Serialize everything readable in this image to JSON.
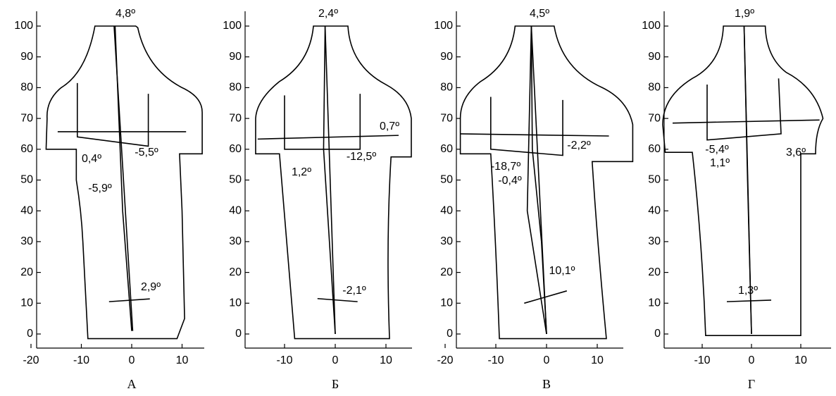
{
  "panels": [
    {
      "label": "А",
      "yticks": [
        0,
        10,
        20,
        30,
        40,
        50,
        60,
        70,
        80,
        90,
        100
      ],
      "xticks": [
        -20,
        -10,
        0,
        10
      ],
      "annotations": [
        "4,8º",
        "0,4º",
        "-5,5º",
        "-5,9º",
        "2,9º"
      ]
    },
    {
      "label": "Б",
      "yticks": [
        0,
        10,
        20,
        30,
        40,
        50,
        60,
        70,
        80,
        90,
        100
      ],
      "xticks": [
        -10,
        0,
        10
      ],
      "annotations": [
        "2,4º",
        "0,7º",
        "1,2º",
        "-12,5º",
        "-2,1º"
      ]
    },
    {
      "label": "В",
      "yticks": [
        0,
        10,
        20,
        30,
        40,
        50,
        60,
        70,
        80,
        90,
        100
      ],
      "xticks": [
        -20,
        -10,
        0,
        10
      ],
      "annotations": [
        "4,5º",
        "-2,2º",
        "-18,7º",
        "-0,4º",
        "10,1º"
      ]
    },
    {
      "label": "Г",
      "yticks": [
        0,
        10,
        20,
        30,
        40,
        50,
        60,
        70,
        80,
        90,
        100
      ],
      "xticks": [
        -10,
        0,
        10
      ],
      "annotations": [
        "1,9º",
        "3,6º",
        "-5,4º",
        "1,1º",
        "1,3º"
      ]
    }
  ]
}
